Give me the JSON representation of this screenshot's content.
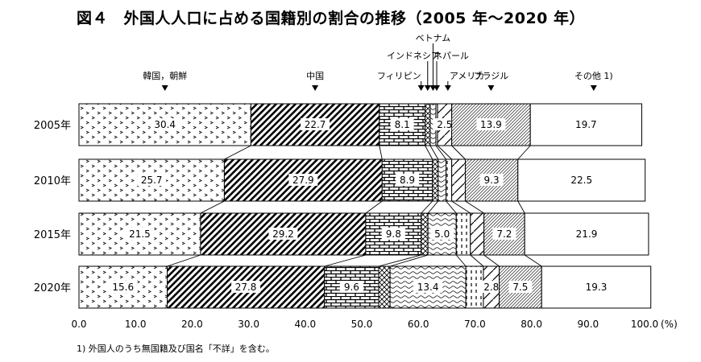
{
  "title": "図４　外国人人口に占める国籍別の割合の推移（2005 年～2020 年）",
  "footnote": "1)  外国人のうち無国籍及び国名「不詳」を含む。",
  "chart_data": {
    "type": "bar",
    "orientation": "horizontal",
    "stacked": true,
    "categories": [
      "2005年",
      "2010年",
      "2015年",
      "2020年"
    ],
    "series": [
      {
        "name": "韓国，朝鮮",
        "values": [
          30.4,
          25.7,
          21.5,
          15.6
        ],
        "labels": [
          "30.4",
          "25.7",
          "21.5",
          "15.6"
        ]
      },
      {
        "name": "中国",
        "values": [
          22.7,
          27.9,
          29.2,
          27.8
        ],
        "labels": [
          "22.7",
          "27.9",
          "29.2",
          "27.8"
        ]
      },
      {
        "name": "フィリピン",
        "values": [
          8.1,
          8.9,
          9.8,
          9.6
        ],
        "labels": [
          "8.1",
          "8.9",
          "9.8",
          "9.6"
        ]
      },
      {
        "name": "インドネシア",
        "values": [
          0.9,
          1.0,
          1.2,
          2.0
        ],
        "labels": [
          "",
          "",
          "",
          ""
        ]
      },
      {
        "name": "ベトナム",
        "values": [
          1.0,
          1.4,
          5.0,
          13.4
        ],
        "labels": [
          "",
          "",
          "5.0",
          "13.4"
        ]
      },
      {
        "name": "ネパール",
        "values": [
          0.3,
          1.0,
          2.5,
          3.1
        ],
        "labels": [
          "",
          "",
          "",
          ""
        ]
      },
      {
        "name": "アメリカ",
        "values": [
          2.5,
          2.4,
          2.4,
          2.8
        ],
        "labels": [
          "2.5",
          "",
          "",
          "2.8"
        ]
      },
      {
        "name": "ブラジル",
        "values": [
          13.9,
          9.3,
          7.2,
          7.5
        ],
        "labels": [
          "13.9",
          "9.3",
          "7.2",
          "7.5"
        ]
      },
      {
        "name": "その他  1)",
        "values": [
          19.7,
          22.5,
          21.9,
          19.3
        ],
        "labels": [
          "19.7",
          "22.5",
          "21.9",
          "19.3"
        ]
      }
    ],
    "xlim": [
      0,
      100
    ],
    "xticks": [
      "0.0",
      "10.0",
      "20.0",
      "30.0",
      "40.0",
      "50.0",
      "60.0",
      "70.0",
      "80.0",
      "90.0",
      "100.0"
    ],
    "x_unit": "(%)",
    "grid": false,
    "legend": "top"
  }
}
